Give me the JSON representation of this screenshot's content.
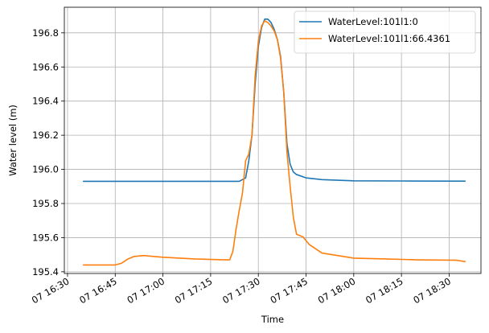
{
  "chart_data": {
    "type": "line",
    "xlabel": "Time",
    "ylabel": "Water level (m)",
    "xlim": [
      "07 16:29",
      "07 18:40"
    ],
    "ylim": [
      195.39,
      196.95
    ],
    "grid": true,
    "legend_position": "top-right",
    "x_ticks": [
      "07 16:30",
      "07 16:45",
      "07 17:00",
      "07 17:15",
      "07 17:30",
      "07 17:45",
      "07 18:00",
      "07 18:15",
      "07 18:30"
    ],
    "y_ticks": [
      "195.4",
      "195.6",
      "195.8",
      "196.0",
      "196.2",
      "196.4",
      "196.6",
      "196.8"
    ],
    "series": [
      {
        "name": "WaterLevel:101l1:0",
        "color": "#1f77b4",
        "x": [
          "07 16:35",
          "07 16:45",
          "07 17:00",
          "07 17:15",
          "07 17:24",
          "07 17:26",
          "07 17:27",
          "07 17:28",
          "07 17:29",
          "07 17:30",
          "07 17:31",
          "07 17:32",
          "07 17:33",
          "07 17:34",
          "07 17:35",
          "07 17:36",
          "07 17:37",
          "07 17:38",
          "07 17:39",
          "07 17:40",
          "07 17:41",
          "07 17:42",
          "07 17:45",
          "07 17:50",
          "07 18:00",
          "07 18:15",
          "07 18:30",
          "07 18:35"
        ],
        "y": [
          195.93,
          195.93,
          195.93,
          195.93,
          195.93,
          195.95,
          196.05,
          196.2,
          196.5,
          196.72,
          196.83,
          196.88,
          196.88,
          196.86,
          196.82,
          196.76,
          196.66,
          196.45,
          196.15,
          196.03,
          195.985,
          195.97,
          195.95,
          195.94,
          195.933,
          195.932,
          195.931,
          195.931
        ]
      },
      {
        "name": "WaterLevel:101l1:66.4361",
        "color": "#ff7f0e",
        "x": [
          "07 16:35",
          "07 16:45",
          "07 16:47",
          "07 16:49",
          "07 16:51",
          "07 16:54",
          "07 16:57",
          "07 17:00",
          "07 17:10",
          "07 17:20",
          "07 17:21",
          "07 17:22",
          "07 17:23",
          "07 17:24",
          "07 17:25",
          "07 17:26",
          "07 17:27",
          "07 17:28",
          "07 17:29",
          "07 17:30",
          "07 17:31",
          "07 17:32",
          "07 17:33",
          "07 17:34",
          "07 17:35",
          "07 17:36",
          "07 17:37",
          "07 17:38",
          "07 17:39",
          "07 17:40",
          "07 17:41",
          "07 17:42",
          "07 17:44",
          "07 17:46",
          "07 17:50",
          "07 18:00",
          "07 18:10",
          "07 18:20",
          "07 18:30",
          "07 18:32",
          "07 18:35"
        ],
        "y": [
          195.44,
          195.44,
          195.45,
          195.475,
          195.49,
          195.495,
          195.49,
          195.485,
          195.475,
          195.47,
          195.47,
          195.52,
          195.65,
          195.76,
          195.86,
          196.05,
          196.09,
          196.2,
          196.55,
          196.75,
          196.84,
          196.87,
          196.86,
          196.84,
          196.81,
          196.76,
          196.65,
          196.45,
          196.1,
          195.9,
          195.72,
          195.62,
          195.605,
          195.56,
          195.51,
          195.48,
          195.475,
          195.47,
          195.468,
          195.468,
          195.46
        ]
      }
    ]
  }
}
